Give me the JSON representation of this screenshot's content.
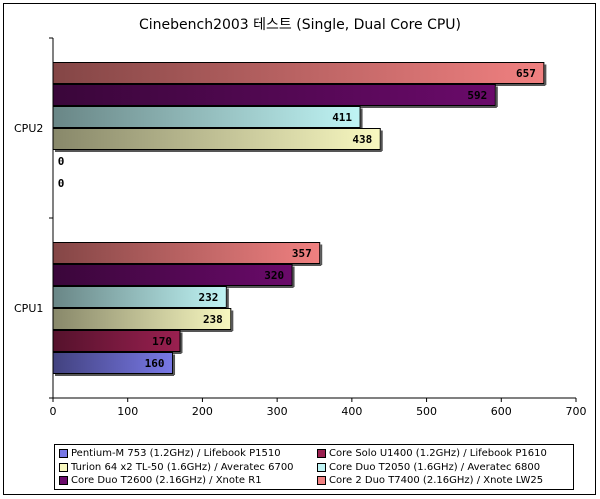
{
  "chart_data": {
    "type": "bar",
    "orientation": "horizontal",
    "title": "Cinebench2003 테스트 (Single, Dual Core CPU)",
    "categories": [
      "CPU2",
      "CPU1"
    ],
    "xlim": [
      0,
      700
    ],
    "xticks": [
      0,
      100,
      200,
      300,
      400,
      500,
      600,
      700
    ],
    "legend_position": "bottom",
    "series": [
      {
        "name": "Core 2 Duo T7400 (2.16GHz) / Xnote LW25",
        "color": "#f08080",
        "values": [
          657,
          357
        ]
      },
      {
        "name": "Core Duo T2600 (2.16GHz) / Xnote R1",
        "color": "#6a0a6a",
        "values": [
          592,
          320
        ]
      },
      {
        "name": "Core Duo T2050 (1.6GHz) / Averatec 6800",
        "color": "#bff4f4",
        "values": [
          411,
          232
        ]
      },
      {
        "name": "Turion 64 x2 TL-50 (1.6GHz) / Averatec 6700",
        "color": "#f8f8c0",
        "values": [
          438,
          238
        ]
      },
      {
        "name": "Core Solo U1400 (1.2GHz) / Lifebook P1610",
        "color": "#9a2050",
        "values": [
          0,
          170
        ]
      },
      {
        "name": "Pentium-M 753 (1.2GHz) / Lifebook P1510",
        "color": "#7878e6",
        "values": [
          0,
          160
        ]
      }
    ],
    "legend_order": [
      5,
      4,
      3,
      2,
      1,
      0
    ]
  }
}
